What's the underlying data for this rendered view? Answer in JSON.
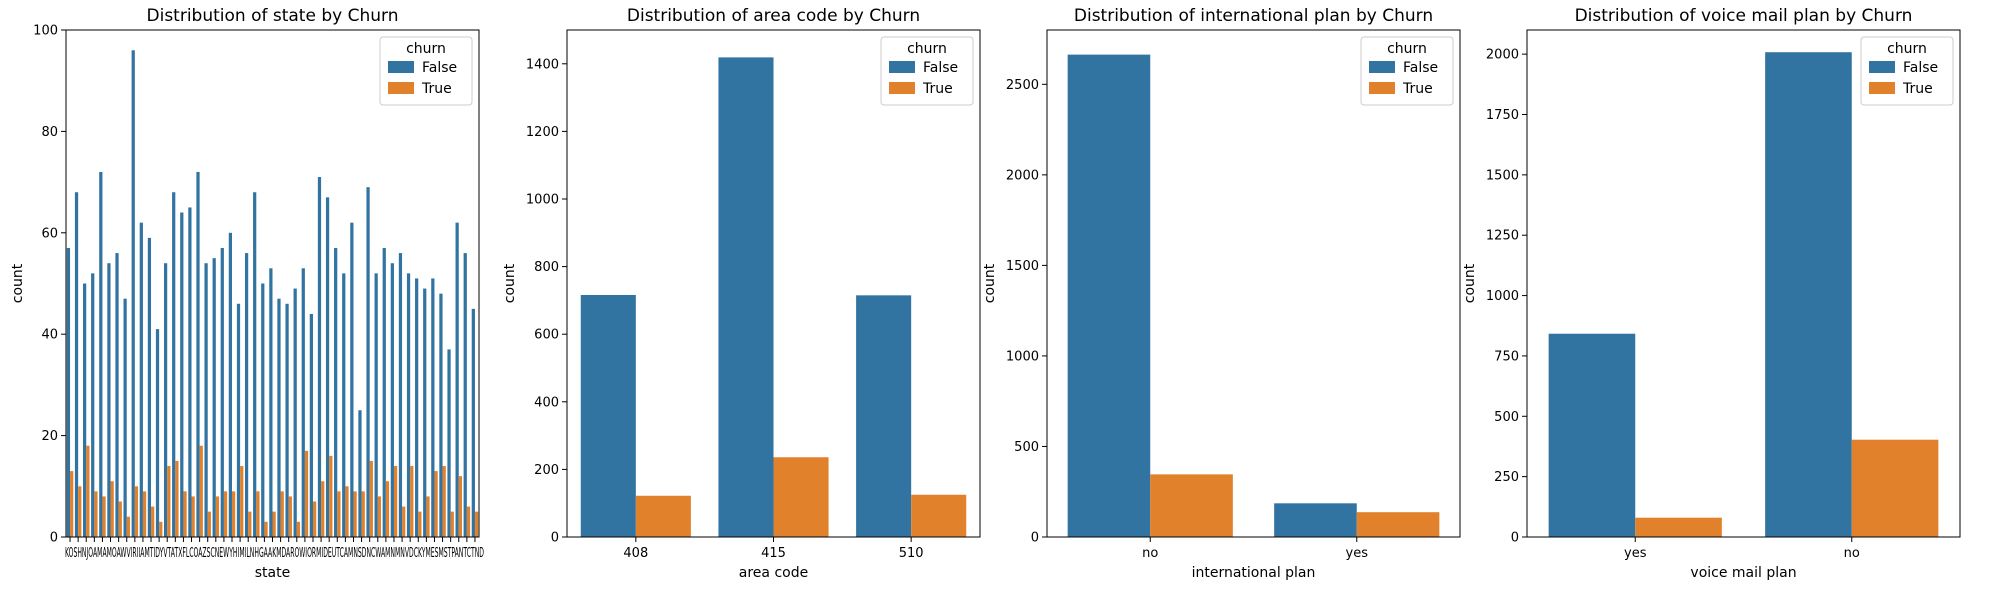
{
  "chart_data": [
    {
      "type": "bar",
      "title": "Distribution of state by Churn",
      "xlabel": "state",
      "ylabel": "count",
      "ylim": [
        0,
        100
      ],
      "yticks": [
        0,
        20,
        40,
        60,
        80,
        100
      ],
      "categories": [
        "KS",
        "OH",
        "NJ",
        "OK",
        "AL",
        "MA",
        "MO",
        "LA",
        "WV",
        "IN",
        "RI",
        "IA",
        "MT",
        "NY",
        "ID",
        "VT",
        "VA",
        "TX",
        "FL",
        "CO",
        "AZ",
        "SC",
        "NE",
        "WY",
        "HI",
        "IL",
        "NH",
        "GA",
        "AK",
        "MD",
        "AR",
        "WI",
        "OR",
        "MI",
        "DE",
        "UT",
        "CA",
        "MN",
        "SD",
        "NC",
        "WA",
        "NM",
        "NV",
        "DC",
        "KY",
        "ME",
        "MS",
        "TN",
        "PA",
        "CT",
        "ND"
      ],
      "tick_label_text": "KOSHNJOAMAMOAWVIRIIAMTIDYVTATXFLCOAZSCNEWYHIMILNHGAAKMDAROWIORMIDEUTCAMNSDNCWAMNMNVDCKYMESMSTPANTCTND",
      "series": [
        {
          "name": "False",
          "values": [
            57,
            68,
            50,
            52,
            72,
            54,
            56,
            47,
            96,
            62,
            59,
            41,
            54,
            68,
            64,
            65,
            72,
            54,
            55,
            57,
            60,
            46,
            56,
            68,
            50,
            53,
            47,
            46,
            49,
            53,
            44,
            71,
            67,
            57,
            52,
            62,
            25,
            69,
            52,
            57,
            54,
            56,
            52,
            51,
            49,
            51,
            48,
            37,
            62,
            56,
            45
          ]
        },
        {
          "name": "True",
          "values": [
            13,
            10,
            18,
            9,
            8,
            11,
            7,
            4,
            10,
            9,
            6,
            3,
            14,
            15,
            9,
            8,
            18,
            5,
            8,
            9,
            9,
            14,
            5,
            9,
            3,
            5,
            9,
            8,
            3,
            17,
            7,
            11,
            16,
            9,
            10,
            9,
            9,
            15,
            8,
            11,
            14,
            6,
            14,
            5,
            8,
            13,
            14,
            5,
            12,
            6,
            5
          ]
        }
      ],
      "legend": {
        "title": "churn",
        "placement": "top-right"
      },
      "colors": [
        "#3274a1",
        "#e1812c"
      ]
    },
    {
      "type": "bar",
      "title": "Distribution of area code by Churn",
      "xlabel": "area code",
      "ylabel": "count",
      "ylim": [
        0,
        1500
      ],
      "yticks": [
        0,
        200,
        400,
        600,
        800,
        1000,
        1200,
        1400
      ],
      "categories": [
        "408",
        "415",
        "510"
      ],
      "series": [
        {
          "name": "False",
          "values": [
            716,
            1419,
            715
          ]
        },
        {
          "name": "True",
          "values": [
            122,
            236,
            125
          ]
        }
      ],
      "legend": {
        "title": "churn",
        "placement": "top-right"
      },
      "colors": [
        "#3274a1",
        "#e1812c"
      ]
    },
    {
      "type": "bar",
      "title": "Distribution of international plan by Churn",
      "xlabel": "international plan",
      "ylabel": "count",
      "ylim": [
        0,
        2800
      ],
      "yticks": [
        0,
        500,
        1000,
        1500,
        2000,
        2500
      ],
      "categories": [
        "no",
        "yes"
      ],
      "series": [
        {
          "name": "False",
          "values": [
            2664,
            186
          ]
        },
        {
          "name": "True",
          "values": [
            346,
            137
          ]
        }
      ],
      "legend": {
        "title": "churn",
        "placement": "top-right"
      },
      "colors": [
        "#3274a1",
        "#e1812c"
      ]
    },
    {
      "type": "bar",
      "title": "Distribution of voice mail plan by Churn",
      "xlabel": "voice mail plan",
      "ylabel": "count",
      "ylim": [
        0,
        2100
      ],
      "yticks": [
        0,
        250,
        500,
        750,
        1000,
        1250,
        1500,
        1750,
        2000
      ],
      "categories": [
        "yes",
        "no"
      ],
      "series": [
        {
          "name": "False",
          "values": [
            842,
            2008
          ]
        },
        {
          "name": "True",
          "values": [
            80,
            403
          ]
        }
      ],
      "legend": {
        "title": "churn",
        "placement": "top-right"
      },
      "colors": [
        "#3274a1",
        "#e1812c"
      ]
    }
  ]
}
